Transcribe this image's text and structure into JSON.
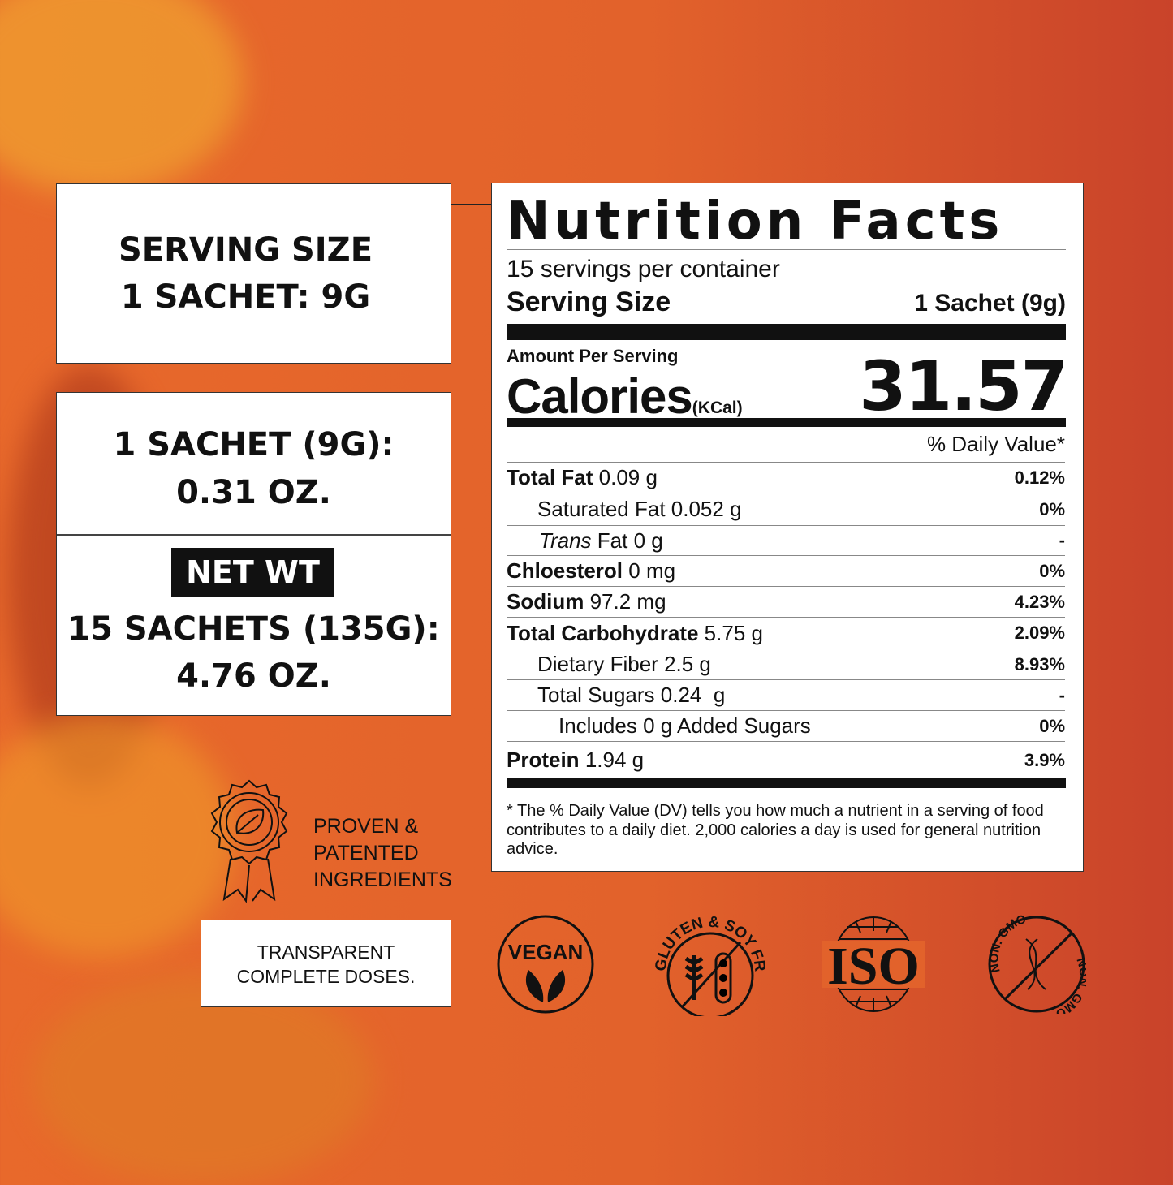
{
  "serving_box": {
    "line1": "SERVING SIZE",
    "line2": "1 SACHET: 9G"
  },
  "weight_box": {
    "sachet_line1": "1 SACHET (9G):",
    "sachet_line2": "0.31 OZ.",
    "net_wt_label": "NET WT",
    "net_line1": "15 SACHETS (135G):",
    "net_line2": "4.76 OZ."
  },
  "proven": {
    "icon": "award-leaf-badge-icon",
    "lines": [
      "PROVEN &",
      "PATENTED",
      "INGREDIENTS"
    ]
  },
  "transparent": {
    "line1": "TRANSPARENT",
    "line2": "COMPLETE DOSES."
  },
  "nutrition": {
    "title": "Nutrition Facts",
    "servings": "15 servings per container",
    "serving_size_label": "Serving Size",
    "serving_size_value": "1 Sachet (9g)",
    "amount_per_serving": "Amount Per Serving",
    "calories_label": "Calories",
    "calories_unit": "(KCal)",
    "calories_value": "31.57",
    "daily_value_header": "% Daily Value*",
    "rows": [
      {
        "name": "Total Fat",
        "amount": "0.09 g",
        "dv": "0.12%",
        "bold": true,
        "indent": 0
      },
      {
        "name": "Saturated Fat",
        "amount": "0.052 g",
        "dv": "0%",
        "bold": false,
        "indent": 1
      },
      {
        "name": "Trans",
        "name_rest": "Fat",
        "amount": "0 g",
        "dv": "-",
        "bold": false,
        "indent": 1,
        "italic": true
      },
      {
        "name": "Chloesterol",
        "amount": "0 mg",
        "dv": "0%",
        "bold": true,
        "indent": 0
      },
      {
        "name": "Sodium",
        "amount": "97.2 mg",
        "dv": "4.23%",
        "bold": true,
        "indent": 0
      },
      {
        "name": "Total Carbohydrate",
        "amount": "5.75 g",
        "dv": "2.09%",
        "bold": true,
        "indent": 0
      },
      {
        "name": "Dietary Fiber",
        "amount": "2.5 g",
        "dv": "8.93%",
        "bold": false,
        "indent": 1
      },
      {
        "name": "Total Sugars",
        "amount": "0.24  g",
        "dv": "-",
        "bold": false,
        "indent": 1
      },
      {
        "name": "Includes 0 g Added Sugars",
        "amount": "",
        "dv": "0%",
        "bold": false,
        "indent": 2
      },
      {
        "name": "Protein",
        "amount": "1.94 g",
        "dv": "3.9%",
        "bold": true,
        "indent": 0
      }
    ],
    "footnote": "* The % Daily Value (DV) tells you how much a nutrient in a serving of food contributes to a daily diet. 2,000 calories a day is used for general nutrition advice."
  },
  "seals": [
    {
      "icon": "vegan-leaf-icon",
      "label": "VEGAN"
    },
    {
      "icon": "gluten-soy-free-icon",
      "label": "GLUTEN & SOY FREE"
    },
    {
      "icon": "iso-globe-icon",
      "label": "ISO"
    },
    {
      "icon": "non-gmo-dna-icon",
      "label": "NON. GMO",
      "label2": "NON. GMO"
    }
  ],
  "colors": {
    "background_start": "#e8692b",
    "background_end": "#c9432a",
    "panel": "#ffffff",
    "ink": "#111111"
  }
}
